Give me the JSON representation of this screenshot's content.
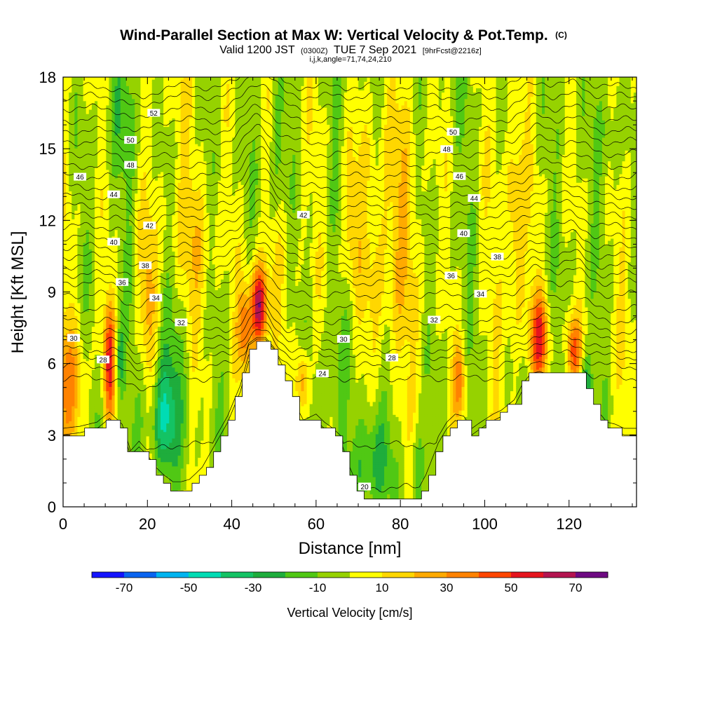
{
  "chart_data": {
    "type": "heatmap",
    "title": "Wind-Parallel Section at Max W: Vertical Velocity & Pot.Temp.",
    "title_suffix": "(C)",
    "subtitle": {
      "valid_prefix": "Valid 1200 JST",
      "utc": "(0300Z)",
      "date": "TUE 7 Sep 2021",
      "forecast": "[9hrFcst@2216z]"
    },
    "index_line": "i,j,k,angle=71,74,24,210",
    "xlabel": "Distance [nm]",
    "ylabel": "Height [Kft MSL]",
    "xlim": [
      0,
      136
    ],
    "ylim": [
      0,
      18
    ],
    "x_ticks": [
      "0",
      "20",
      "40",
      "60",
      "80",
      "100",
      "120"
    ],
    "y_ticks": [
      "0",
      "3",
      "6",
      "9",
      "12",
      "15",
      "18"
    ],
    "grid": false,
    "colorbar": {
      "label": "Vertical Velocity [cm/s]",
      "ticks": [
        "-70",
        "-50",
        "-30",
        "-10",
        "10",
        "30",
        "50",
        "70"
      ],
      "levels": [
        -80,
        -70,
        -60,
        -50,
        -40,
        -30,
        -20,
        -10,
        0,
        10,
        20,
        30,
        40,
        50,
        60,
        70,
        80
      ],
      "colors": [
        "#1414ff",
        "#0a64f0",
        "#00b4f0",
        "#00dcb4",
        "#14c364",
        "#1ead3c",
        "#50c814",
        "#96d200",
        "#ffff00",
        "#ffd700",
        "#ffaa00",
        "#ff8200",
        "#ff4600",
        "#e6141e",
        "#b41450",
        "#6e0a82"
      ]
    },
    "background_w": 0,
    "terrain": [
      [
        0,
        3
      ],
      [
        4,
        3.1
      ],
      [
        8,
        3.3
      ],
      [
        11,
        3.8
      ],
      [
        14,
        3.2
      ],
      [
        16,
        2.0
      ],
      [
        18,
        2.4
      ],
      [
        20,
        2.0
      ],
      [
        22,
        1.4
      ],
      [
        24,
        1.0
      ],
      [
        26,
        0.7
      ],
      [
        28,
        0.7
      ],
      [
        30,
        0.8
      ],
      [
        33,
        1.4
      ],
      [
        36,
        2.5
      ],
      [
        39,
        3.6
      ],
      [
        42,
        5.1
      ],
      [
        44,
        6.6
      ],
      [
        46,
        6.9
      ],
      [
        48,
        6.9
      ],
      [
        50,
        6.4
      ],
      [
        52,
        5.6
      ],
      [
        55,
        4.2
      ],
      [
        57,
        3.4
      ],
      [
        60,
        3.7
      ],
      [
        62,
        3.3
      ],
      [
        64,
        3.0
      ],
      [
        66,
        2.6
      ],
      [
        68,
        1.4
      ],
      [
        70,
        0.4
      ],
      [
        73,
        0.2
      ],
      [
        76,
        0.2
      ],
      [
        80,
        0.2
      ],
      [
        84,
        0.3
      ],
      [
        86,
        1.0
      ],
      [
        89,
        2.6
      ],
      [
        91,
        3.3
      ],
      [
        93,
        3.7
      ],
      [
        95,
        3.6
      ],
      [
        97,
        3.0
      ],
      [
        99,
        3.3
      ],
      [
        102,
        3.7
      ],
      [
        104,
        3.9
      ],
      [
        107,
        4.4
      ],
      [
        109,
        5.2
      ],
      [
        111,
        5.7
      ],
      [
        113,
        5.8
      ],
      [
        116,
        5.6
      ],
      [
        118,
        5.4
      ],
      [
        121,
        5.6
      ],
      [
        123,
        5.6
      ],
      [
        125,
        4.5
      ],
      [
        127,
        3.8
      ],
      [
        129,
        3.3
      ],
      [
        131,
        3.2
      ],
      [
        133,
        3.0
      ],
      [
        136,
        3.0
      ]
    ],
    "updrafts": [
      {
        "x": 46.5,
        "z": 8.4,
        "sx": 1.4,
        "sz": 1.2,
        "w": 75
      },
      {
        "x": 11,
        "z": 6.1,
        "sx": 1.0,
        "sz": 1.8,
        "w": 50
      },
      {
        "x": 1,
        "z": 5.0,
        "sx": 3.0,
        "sz": 1.6,
        "w": 28
      },
      {
        "x": 113,
        "z": 7.0,
        "sx": 1.5,
        "sz": 1.3,
        "w": 48
      },
      {
        "x": 121,
        "z": 6.5,
        "sx": 1.3,
        "sz": 1.0,
        "w": 42
      },
      {
        "x": 20,
        "z": 8.8,
        "sx": 1.5,
        "sz": 2.0,
        "w": 22
      },
      {
        "x": 94,
        "z": 5.3,
        "sx": 1.1,
        "sz": 1.1,
        "w": 38
      },
      {
        "x": 57,
        "z": 5.2,
        "sx": 1.0,
        "sz": 1.0,
        "w": 34
      },
      {
        "x": 107,
        "z": 11.5,
        "sx": 1.5,
        "sz": 3.0,
        "w": 20
      },
      {
        "x": 68,
        "z": 12.0,
        "sx": 1.5,
        "sz": 2.0,
        "w": 18
      },
      {
        "x": 32,
        "z": 10.5,
        "sx": 4.0,
        "sz": 3.0,
        "w": 14
      },
      {
        "x": 77,
        "z": 11.0,
        "sx": 5.0,
        "sz": 4.0,
        "w": 14
      },
      {
        "x": 43,
        "z": 7.5,
        "sx": 1.2,
        "sz": 1.2,
        "w": 40
      }
    ],
    "downdrafts": [
      {
        "x": 24,
        "z": 3.5,
        "sx": 1.8,
        "sz": 1.8,
        "w": -36
      },
      {
        "x": 74,
        "z": 2.2,
        "sx": 2.8,
        "sz": 1.8,
        "w": -30
      },
      {
        "x": 13.5,
        "z": 6.3,
        "sx": 0.8,
        "sz": 0.9,
        "w": -28
      },
      {
        "x": 26,
        "z": 5.5,
        "sx": 4.0,
        "sz": 2.5,
        "w": -16
      },
      {
        "x": 51,
        "z": 15.5,
        "sx": 1.6,
        "sz": 2.5,
        "w": -18
      },
      {
        "x": 124,
        "z": 5.0,
        "sx": 1.0,
        "sz": 1.0,
        "w": -28
      },
      {
        "x": 84,
        "z": 1.8,
        "sx": 1.2,
        "sz": 1.5,
        "w": -20
      },
      {
        "x": 62,
        "z": 4.5,
        "sx": 3.0,
        "sz": 1.5,
        "w": -12
      },
      {
        "x": 15,
        "z": 17.0,
        "sx": 3.0,
        "sz": 2.0,
        "w": -12
      },
      {
        "x": 130,
        "z": 16.0,
        "sx": 2.0,
        "sz": 3.0,
        "w": -12
      }
    ],
    "isentropes": [
      {
        "theta": 20,
        "z": 0.8,
        "label_x": 71.5
      },
      {
        "theta": 22,
        "z": 2.6
      },
      {
        "theta": 24,
        "z": 5.4,
        "label_x": 61.5
      },
      {
        "theta": 26,
        "z": 5.9
      },
      {
        "theta": 28,
        "z": 6.3,
        "label_x": 78,
        "label_x2": 9.5
      },
      {
        "theta": 29,
        "z": 6.6
      },
      {
        "theta": 30,
        "z": 7.0,
        "label_x": 2.5,
        "label_x2": 66.5
      },
      {
        "theta": 31,
        "z": 7.35
      },
      {
        "theta": 32,
        "z": 7.8,
        "label_x": 28,
        "label_x2": 88
      },
      {
        "theta": 33,
        "z": 8.3
      },
      {
        "theta": 34,
        "z": 8.9,
        "label_x": 22,
        "label_x2": 99
      },
      {
        "theta": 35,
        "z": 9.4
      },
      {
        "theta": 36,
        "z": 9.75,
        "label_x": 14,
        "label_x2": 92
      },
      {
        "theta": 37,
        "z": 10.1
      },
      {
        "theta": 38,
        "z": 10.5,
        "label_x": 19.5,
        "label_x2": 103
      },
      {
        "theta": 39,
        "z": 10.9
      },
      {
        "theta": 40,
        "z": 11.3,
        "label_x": 12,
        "label_x2": 95
      },
      {
        "theta": 41,
        "z": 11.75
      },
      {
        "theta": 42,
        "z": 12.2,
        "label_x": 20.5,
        "label_x2": 57
      },
      {
        "theta": 43,
        "z": 12.6
      },
      {
        "theta": 44,
        "z": 13.0,
        "label_x": 12,
        "label_x2": 97.5
      },
      {
        "theta": 45,
        "z": 13.4
      },
      {
        "theta": 46,
        "z": 13.85,
        "label_x": 4,
        "label_x2": 94
      },
      {
        "theta": 47,
        "z": 14.3
      },
      {
        "theta": 48,
        "z": 14.8,
        "label_x": 16,
        "label_x2": 91
      },
      {
        "theta": 49,
        "z": 15.3
      },
      {
        "theta": 50,
        "z": 15.75,
        "label_x": 16,
        "label_x2": 92.5
      },
      {
        "theta": 51,
        "z": 16.2
      },
      {
        "theta": 52,
        "z": 16.7,
        "label_x": 21.5
      },
      {
        "theta": 53,
        "z": 17.2
      },
      {
        "theta": 54,
        "z": 17.6
      }
    ]
  }
}
